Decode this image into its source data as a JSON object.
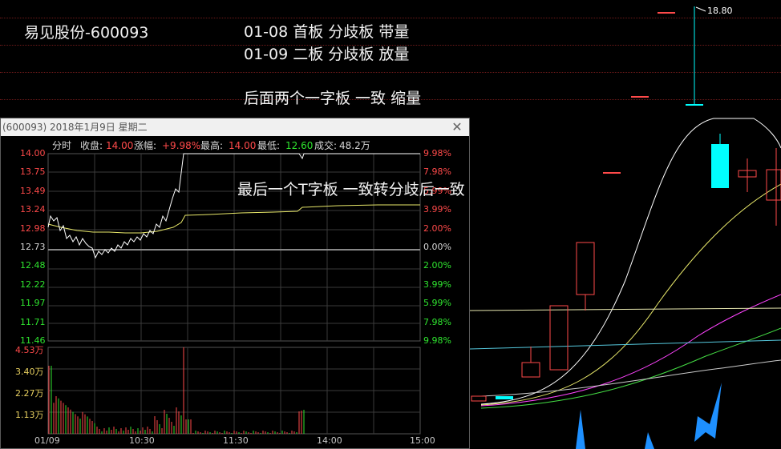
{
  "annotations": {
    "stock_name": "易见股份-600093",
    "line1": "01-08 首板 分歧板 带量",
    "line2": "01-09 二板 分歧板 放量",
    "line3": "后面两个一字板 一致 缩量",
    "line4": "最后一个T字板 一致转分歧后一致"
  },
  "kline": {
    "high_marker": "18.80"
  },
  "popup": {
    "title": "(600093) 2018年1月9日 星期二",
    "close_glyph": "✕",
    "info": {
      "tab": "分时",
      "close_label": "收盘:",
      "close_value": "14.00",
      "change_label": "涨幅:",
      "change_value": "+9.98%",
      "high_label": "最高:",
      "high_value": "14.00",
      "low_label": "最低:",
      "low_value": "12.60",
      "volume_label": "成交:",
      "volume_value": "48.2万"
    },
    "price_axis": [
      "14.00",
      "13.75",
      "13.49",
      "13.24",
      "12.98",
      "12.73",
      "12.48",
      "12.22",
      "11.97",
      "11.71",
      "11.46"
    ],
    "pct_axis": [
      "9.98%",
      "7.98%",
      "5.99%",
      "3.99%",
      "2.00%",
      "0.00%",
      "2.00%",
      "3.99%",
      "5.99%",
      "7.98%",
      "9.98%"
    ],
    "volume_axis": [
      "4.53万",
      "3.40万",
      "2.27万",
      "1.13万"
    ],
    "time_axis": [
      "01/09",
      "10:30",
      "11:30",
      "14:00",
      "15:00"
    ]
  },
  "colors": {
    "up": "#ff4a4a",
    "down": "#2fe52f",
    "flat": "#d8d8d8",
    "avg_line": "#e8e86a",
    "price_line": "#ffffff",
    "cyan_candle": "#00ffff",
    "blue_arrow": "#1e90ff"
  }
}
